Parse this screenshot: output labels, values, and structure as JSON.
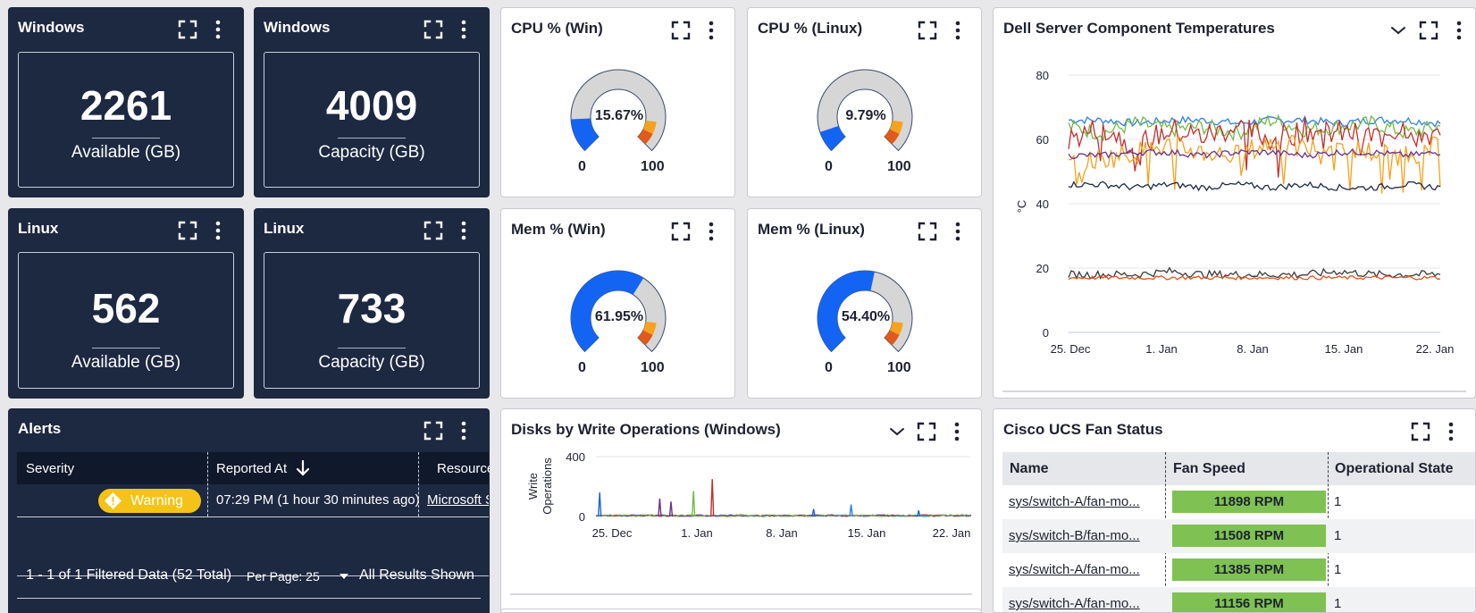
{
  "widgets": {
    "win_available": {
      "title": "Windows",
      "value": "2261",
      "label": "Available (GB)"
    },
    "win_capacity": {
      "title": "Windows",
      "value": "4009",
      "label": "Capacity (GB)"
    },
    "lin_available": {
      "title": "Linux",
      "value": "562",
      "label": "Available (GB)"
    },
    "lin_capacity": {
      "title": "Linux",
      "value": "733",
      "label": "Capacity (GB)"
    }
  },
  "gauges": {
    "cpu_win": {
      "title": "CPU % (Win)",
      "value_text": "15.67%",
      "value": 15.67,
      "min": "0",
      "max": "100"
    },
    "cpu_lin": {
      "title": "CPU % (Linux)",
      "value_text": "9.79%",
      "value": 9.79,
      "min": "0",
      "max": "100"
    },
    "mem_win": {
      "title": "Mem % (Win)",
      "value_text": "61.95%",
      "value": 61.95,
      "min": "0",
      "max": "100"
    },
    "mem_lin": {
      "title": "Mem % (Linux)",
      "value_text": "54.40%",
      "value": 54.4,
      "min": "0",
      "max": "100"
    }
  },
  "colors": {
    "dark_bg": "#1d2841",
    "gauge_blue": "#1464f4",
    "gauge_gray": "#d6d6d6",
    "gauge_orange": "#f6a21e",
    "gauge_red": "#e05a1b",
    "fan_green": "#7fc253",
    "warning": "#f3c417"
  },
  "temps": {
    "title": "Dell Server Component Temperatures",
    "chart_data": {
      "type": "line",
      "ylabel": "°C",
      "ylim": [
        0,
        80
      ],
      "yticks": [
        "80",
        "60",
        "40",
        "20",
        "0"
      ],
      "xticks": [
        "25. Dec",
        "1. Jan",
        "8. Jan",
        "15. Jan",
        "22. Jan"
      ],
      "series": [
        {
          "color": "#2f7ee8",
          "values": [
            66,
            66,
            65,
            66,
            66,
            65,
            66,
            66,
            65,
            66,
            66,
            65
          ]
        },
        {
          "color": "#74b844",
          "values": [
            64,
            62,
            65,
            63,
            64,
            62,
            66,
            63,
            64,
            65,
            62,
            64
          ]
        },
        {
          "color": "#c0302c",
          "values": [
            60,
            64,
            58,
            63,
            61,
            64,
            60,
            63,
            62,
            61,
            64,
            60
          ]
        },
        {
          "color": "#f5a11c",
          "values": [
            52,
            54,
            56,
            58,
            56,
            55,
            59,
            57,
            58,
            56,
            55,
            58
          ]
        },
        {
          "color": "#6b2f8a",
          "values": [
            55,
            55,
            56,
            56,
            55,
            56,
            56,
            55,
            56,
            56,
            55,
            56
          ]
        },
        {
          "color": "#1e2a45",
          "values": [
            46,
            46,
            45,
            46,
            45,
            46,
            45,
            46,
            45,
            45,
            46,
            45
          ]
        },
        {
          "color": "#3b3b3b",
          "values": [
            18,
            18,
            18,
            19,
            18,
            18,
            18,
            18,
            19,
            18,
            18,
            18
          ]
        },
        {
          "color": "#e2531a",
          "values": [
            17,
            17,
            17,
            17,
            17,
            17,
            17,
            17,
            17,
            17,
            17,
            17
          ]
        }
      ]
    }
  },
  "alerts": {
    "title": "Alerts",
    "columns": [
      "Severity",
      "Reported At",
      "Resource/"
    ],
    "rows": [
      {
        "severity": "Warning",
        "reported": "07:29 PM  (1 hour 30 minutes ago)",
        "resource": "Microsoft S"
      }
    ],
    "footer": "1 - 1 of 1 Filtered Data (52 Total)",
    "per_page": "Per Page: 25",
    "results": "All Results Shown"
  },
  "disks": {
    "title": "Disks by Write Operations (Windows)",
    "chart_data": {
      "type": "line",
      "ylabel": "Write Operations",
      "ylim": [
        0,
        400
      ],
      "yticks": [
        "400",
        "0"
      ],
      "xticks": [
        "25. Dec",
        "1. Jan",
        "8. Jan",
        "15. Jan",
        "22. Jan"
      ],
      "spikes": [
        {
          "color": "#1d62d8",
          "x_frac": 0.01,
          "value": 160
        },
        {
          "color": "#6b2f8a",
          "x_frac": 0.17,
          "value": 120
        },
        {
          "color": "#6b2f8a",
          "x_frac": 0.2,
          "value": 100
        },
        {
          "color": "#74b844",
          "x_frac": 0.26,
          "value": 170
        },
        {
          "color": "#c0302c",
          "x_frac": 0.31,
          "value": 250
        },
        {
          "color": "#1d62d8",
          "x_frac": 0.58,
          "value": 50
        },
        {
          "color": "#2f7ee8",
          "x_frac": 0.68,
          "value": 80
        },
        {
          "color": "#1d62d8",
          "x_frac": 0.86,
          "value": 40
        }
      ]
    }
  },
  "fans": {
    "title": "Cisco UCS Fan Status",
    "columns": [
      "Name",
      "Fan Speed",
      "Operational State"
    ],
    "rows": [
      {
        "name": "sys/switch-A/fan-mo...",
        "speed": "11898 RPM",
        "state": "1"
      },
      {
        "name": "sys/switch-B/fan-mo...",
        "speed": "11508 RPM",
        "state": "1"
      },
      {
        "name": "sys/switch-A/fan-mo...",
        "speed": "11385 RPM",
        "state": "1"
      },
      {
        "name": "sys/switch-A/fan-mo...",
        "speed": "11156 RPM",
        "state": "1"
      }
    ]
  }
}
